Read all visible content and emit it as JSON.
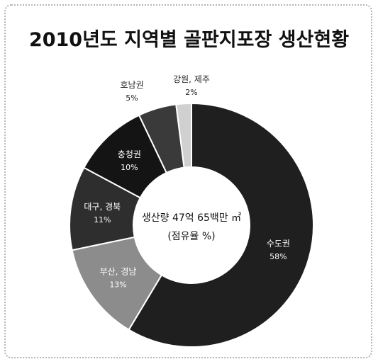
{
  "chart_data": {
    "type": "pie",
    "title": "2010년도 지역별 골판지포장 생산현황",
    "center_label_line1": "생산량 47억 65백만 ㎡",
    "center_label_line2": "(점유율 %)",
    "slices": [
      {
        "name": "수도권",
        "value": 58,
        "label": "58%",
        "color": "#1f1f1f",
        "text_color": "#ffffff"
      },
      {
        "name": "부산, 경남",
        "value": 13,
        "label": "13%",
        "color": "#8c8c8c",
        "text_color": "#ffffff"
      },
      {
        "name": "대구, 경북",
        "value": 11,
        "label": "11%",
        "color": "#2e2e2e",
        "text_color": "#ffffff"
      },
      {
        "name": "충청권",
        "value": 10,
        "label": "10%",
        "color": "#141414",
        "text_color": "#ffffff"
      },
      {
        "name": "호남권",
        "value": 5,
        "label": "5%",
        "color": "#3a3a3a",
        "text_color": "#ffffff"
      },
      {
        "name": "강원, 제주",
        "value": 2,
        "label": "2%",
        "color": "#d0d0d0",
        "text_color": "#111111"
      }
    ]
  }
}
